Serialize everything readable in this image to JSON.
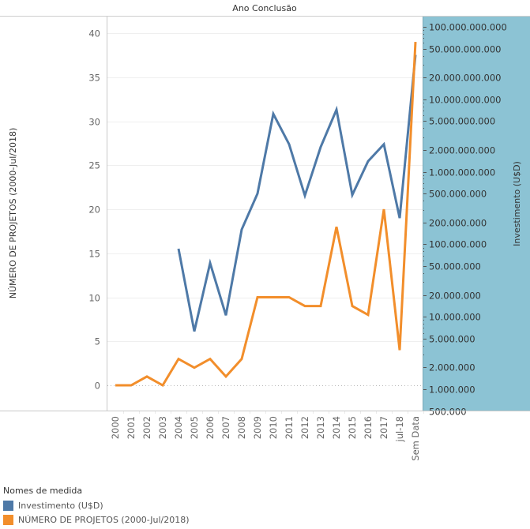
{
  "chart_data": {
    "type": "line",
    "title": "Ano Conclusão",
    "xlabel": "",
    "categories": [
      "2000",
      "2001",
      "2002",
      "2003",
      "2004",
      "2005",
      "2006",
      "2007",
      "2008",
      "2009",
      "2010",
      "2011",
      "2012",
      "2013",
      "2014",
      "2015",
      "2016",
      "2017",
      "jul-18",
      "Sem Data"
    ],
    "left_axis": {
      "label": "NÚMERO DE PROJETOS (2000-Jul/2018)",
      "scale": "linear",
      "range": [
        -3,
        42
      ],
      "ticks": [
        0,
        5,
        10,
        15,
        20,
        25,
        30,
        35,
        40
      ],
      "tick_labels": [
        "0",
        "5",
        "10",
        "15",
        "20",
        "25",
        "30",
        "35",
        "40"
      ],
      "grid": true,
      "zero_line": "dotted"
    },
    "right_axis": {
      "label": "Investimento (U$D)",
      "scale": "log",
      "range": [
        380000,
        130000000000
      ],
      "ticks": [
        500000,
        1000000,
        2000000,
        5000000,
        10000000,
        20000000,
        50000000,
        100000000,
        200000000,
        500000000,
        1000000000,
        2000000000,
        5000000000,
        10000000000,
        20000000000,
        50000000000,
        100000000000
      ],
      "tick_labels": [
        "500.000",
        "1.000.000",
        "2.000.000",
        "5.000.000",
        "10.000.000",
        "20.000.000",
        "50.000.000",
        "100.000.000",
        "200.000.000",
        "500.000.000",
        "1.000.000.000",
        "2.000.000.000",
        "5.000.000.000",
        "10.000.000.000",
        "20.000.000.000",
        "50.000.000.000",
        "100.000.000.000"
      ],
      "background": "#8CC3D4"
    },
    "series": [
      {
        "name": "Investimento (U$D)",
        "axis": "right",
        "color": "#4E79A7",
        "values": [
          null,
          null,
          null,
          null,
          87000000,
          6300000,
          55000000,
          10500000,
          160000000,
          500000000,
          6300000000,
          2400000000,
          470000000,
          2200000000,
          7200000000,
          480000000,
          1400000000,
          2400000000,
          230000000,
          41000000000
        ]
      },
      {
        "name": "NÚMERO DE PROJETOS (2000-Jul/2018)",
        "axis": "left",
        "color": "#F28E2B",
        "values": [
          0,
          0,
          1,
          0,
          3,
          2,
          3,
          1,
          3,
          10,
          10,
          10,
          9,
          9,
          18,
          9,
          8,
          20,
          4,
          39
        ]
      }
    ],
    "legend": {
      "title": "Nomes de medida",
      "position": "bottom-left",
      "items": [
        {
          "label": "Investimento (U$D)",
          "color": "#4E79A7"
        },
        {
          "label": "NÚMERO DE PROJETOS (2000-Jul/2018)",
          "color": "#F28E2B"
        }
      ]
    }
  }
}
